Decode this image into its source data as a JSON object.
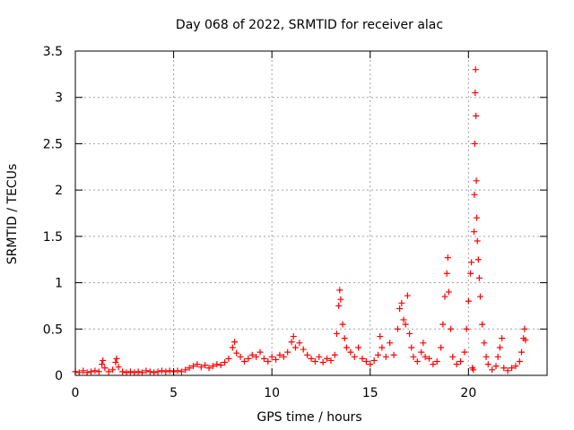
{
  "chart_data": {
    "type": "scatter",
    "title": "Day 068 of 2022, SRMTID for receiver alac",
    "xlabel": "GPS time / hours",
    "ylabel": "SRMTID / TECUs",
    "xlim": [
      0,
      24
    ],
    "ylim": [
      0,
      3.5
    ],
    "x_ticks": [
      0,
      5,
      10,
      15,
      20
    ],
    "x_tick_labels": [
      "0",
      "5",
      "10",
      "15",
      "20"
    ],
    "y_ticks": [
      0,
      0.5,
      1,
      1.5,
      2,
      2.5,
      3,
      3.5
    ],
    "y_tick_labels": [
      "0",
      "0.5",
      "1",
      "1.5",
      "2",
      "2.5",
      "3",
      "3.5"
    ],
    "grid": true,
    "marker": "+",
    "color": "#ff0000",
    "series": [
      {
        "name": "SRMTID",
        "points": [
          [
            0.0,
            0.04
          ],
          [
            0.2,
            0.03
          ],
          [
            0.4,
            0.05
          ],
          [
            0.6,
            0.03
          ],
          [
            0.8,
            0.04
          ],
          [
            1.0,
            0.05
          ],
          [
            1.2,
            0.04
          ],
          [
            1.35,
            0.12
          ],
          [
            1.4,
            0.16
          ],
          [
            1.5,
            0.08
          ],
          [
            1.7,
            0.04
          ],
          [
            1.9,
            0.06
          ],
          [
            2.05,
            0.14
          ],
          [
            2.1,
            0.18
          ],
          [
            2.2,
            0.09
          ],
          [
            2.4,
            0.04
          ],
          [
            2.6,
            0.03
          ],
          [
            2.8,
            0.04
          ],
          [
            3.0,
            0.03
          ],
          [
            3.2,
            0.04
          ],
          [
            3.4,
            0.03
          ],
          [
            3.6,
            0.05
          ],
          [
            3.8,
            0.04
          ],
          [
            4.0,
            0.03
          ],
          [
            4.2,
            0.04
          ],
          [
            4.4,
            0.05
          ],
          [
            4.6,
            0.04
          ],
          [
            4.8,
            0.05
          ],
          [
            5.0,
            0.04
          ],
          [
            5.2,
            0.05
          ],
          [
            5.4,
            0.04
          ],
          [
            5.6,
            0.06
          ],
          [
            5.8,
            0.08
          ],
          [
            6.0,
            0.1
          ],
          [
            6.2,
            0.12
          ],
          [
            6.4,
            0.09
          ],
          [
            6.6,
            0.11
          ],
          [
            6.8,
            0.08
          ],
          [
            7.0,
            0.1
          ],
          [
            7.2,
            0.12
          ],
          [
            7.4,
            0.11
          ],
          [
            7.6,
            0.14
          ],
          [
            7.8,
            0.18
          ],
          [
            8.0,
            0.3
          ],
          [
            8.1,
            0.36
          ],
          [
            8.2,
            0.24
          ],
          [
            8.4,
            0.2
          ],
          [
            8.6,
            0.15
          ],
          [
            8.8,
            0.18
          ],
          [
            9.0,
            0.22
          ],
          [
            9.2,
            0.2
          ],
          [
            9.4,
            0.25
          ],
          [
            9.6,
            0.18
          ],
          [
            9.8,
            0.15
          ],
          [
            10.0,
            0.2
          ],
          [
            10.2,
            0.17
          ],
          [
            10.4,
            0.22
          ],
          [
            10.6,
            0.2
          ],
          [
            10.8,
            0.25
          ],
          [
            11.0,
            0.36
          ],
          [
            11.1,
            0.42
          ],
          [
            11.2,
            0.3
          ],
          [
            11.4,
            0.35
          ],
          [
            11.6,
            0.28
          ],
          [
            11.8,
            0.22
          ],
          [
            12.0,
            0.18
          ],
          [
            12.2,
            0.15
          ],
          [
            12.4,
            0.2
          ],
          [
            12.6,
            0.14
          ],
          [
            12.8,
            0.18
          ],
          [
            13.0,
            0.16
          ],
          [
            13.2,
            0.22
          ],
          [
            13.3,
            0.45
          ],
          [
            13.4,
            0.75
          ],
          [
            13.45,
            0.92
          ],
          [
            13.5,
            0.82
          ],
          [
            13.6,
            0.55
          ],
          [
            13.7,
            0.4
          ],
          [
            13.8,
            0.3
          ],
          [
            14.0,
            0.25
          ],
          [
            14.2,
            0.2
          ],
          [
            14.4,
            0.3
          ],
          [
            14.6,
            0.18
          ],
          [
            14.8,
            0.15
          ],
          [
            15.0,
            0.12
          ],
          [
            15.2,
            0.16
          ],
          [
            15.4,
            0.22
          ],
          [
            15.5,
            0.42
          ],
          [
            15.6,
            0.3
          ],
          [
            15.8,
            0.2
          ],
          [
            16.0,
            0.35
          ],
          [
            16.2,
            0.22
          ],
          [
            16.4,
            0.5
          ],
          [
            16.5,
            0.72
          ],
          [
            16.6,
            0.78
          ],
          [
            16.7,
            0.6
          ],
          [
            16.8,
            0.55
          ],
          [
            16.9,
            0.86
          ],
          [
            17.0,
            0.45
          ],
          [
            17.1,
            0.3
          ],
          [
            17.2,
            0.2
          ],
          [
            17.4,
            0.15
          ],
          [
            17.6,
            0.25
          ],
          [
            17.7,
            0.35
          ],
          [
            17.8,
            0.2
          ],
          [
            18.0,
            0.18
          ],
          [
            18.2,
            0.12
          ],
          [
            18.4,
            0.15
          ],
          [
            18.6,
            0.3
          ],
          [
            18.7,
            0.55
          ],
          [
            18.8,
            0.85
          ],
          [
            18.9,
            1.1
          ],
          [
            18.95,
            1.27
          ],
          [
            19.0,
            0.9
          ],
          [
            19.1,
            0.5
          ],
          [
            19.2,
            0.2
          ],
          [
            19.4,
            0.12
          ],
          [
            19.6,
            0.15
          ],
          [
            19.8,
            0.25
          ],
          [
            19.9,
            0.5
          ],
          [
            20.0,
            0.8
          ],
          [
            20.1,
            1.1
          ],
          [
            20.15,
            1.22
          ],
          [
            20.2,
            0.08
          ],
          [
            20.25,
            0.06
          ],
          [
            20.28,
            1.55
          ],
          [
            20.3,
            1.95
          ],
          [
            20.32,
            2.5
          ],
          [
            20.34,
            3.05
          ],
          [
            20.36,
            3.3
          ],
          [
            20.38,
            2.8
          ],
          [
            20.4,
            2.1
          ],
          [
            20.42,
            1.7
          ],
          [
            20.45,
            1.45
          ],
          [
            20.5,
            1.25
          ],
          [
            20.55,
            1.05
          ],
          [
            20.6,
            0.85
          ],
          [
            20.7,
            0.55
          ],
          [
            20.8,
            0.35
          ],
          [
            20.9,
            0.2
          ],
          [
            21.0,
            0.12
          ],
          [
            21.2,
            0.06
          ],
          [
            21.4,
            0.1
          ],
          [
            21.5,
            0.2
          ],
          [
            21.6,
            0.3
          ],
          [
            21.7,
            0.4
          ],
          [
            21.8,
            0.08
          ],
          [
            22.0,
            0.05
          ],
          [
            22.2,
            0.08
          ],
          [
            22.4,
            0.1
          ],
          [
            22.6,
            0.15
          ],
          [
            22.7,
            0.25
          ],
          [
            22.8,
            0.4
          ],
          [
            22.85,
            0.5
          ],
          [
            22.9,
            0.38
          ]
        ]
      }
    ]
  }
}
